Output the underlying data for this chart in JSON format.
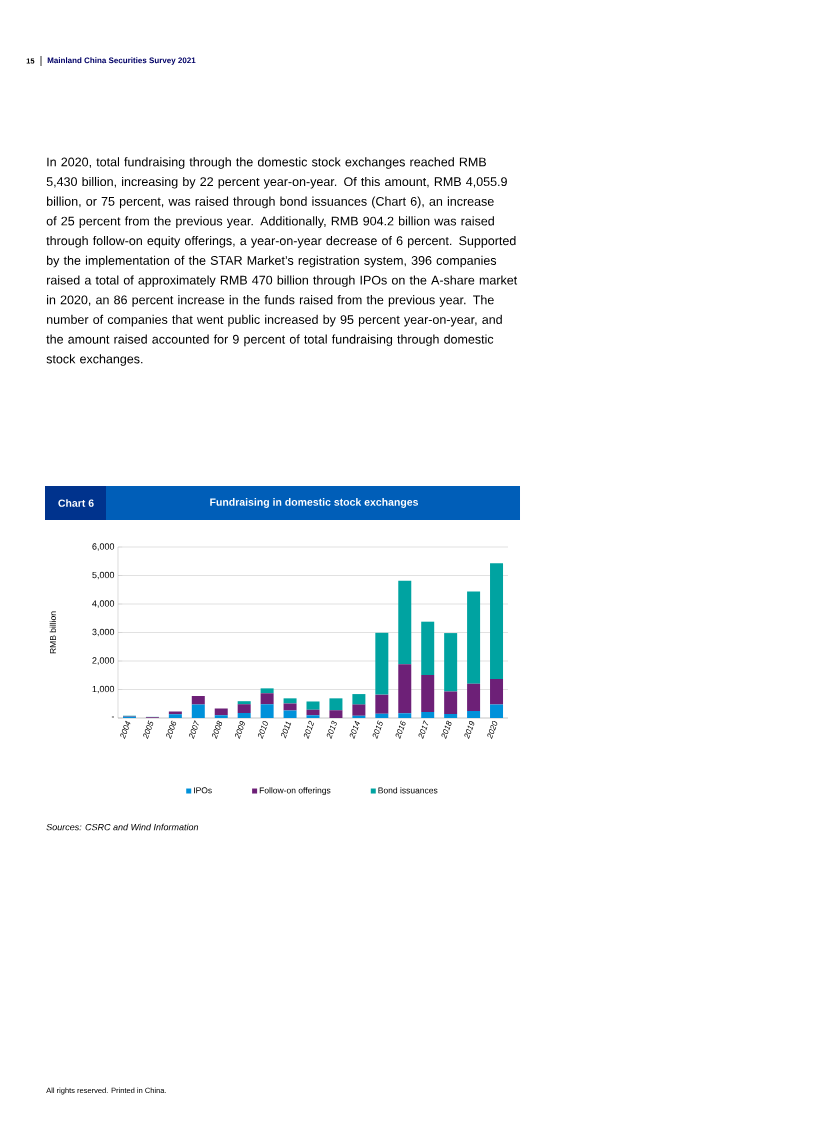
{
  "chart_data": {
    "type": "bar",
    "title": "Fundraising in domestic stock exchanges",
    "ylabel": "RMB billion",
    "annotations": [
      "15",
      "Mainland China Securities Survey 2021",
      "Chart 6",
      "In 2020, total fundraising through the domestic stock exchanges reached RMB 5,430 billion, increasing by 22 percent year-on-year. Of this amount, RMB 4,055.9 billion, or 75 percent, was raised through bond issuances (Chart 6), an increase of 25 percent from the previous year. Additionally, RMB 904.2 billion was raised through follow-on equity offerings, a year-on-year decrease of 6 percent. Supported by the implementation of the STAR Market’s registration system, 396 companies raised a total of approximately RMB 470 billion through IPOs on the A-share market in 2020, an 86 percent increase in the funds raised from the previous year. The number of companies that went public increased by 95 percent year-on-year, and the amount raised accounted for 9 percent of total fundraising through domestic stock exchanges.",
      "Sources: CSRC and Wind Information",
      "All rights reserved. Printed in China."
    ],
    "categories": [
      "2004",
      "2005",
      "2006",
      "2007",
      "2008",
      "2009",
      "2010",
      "2011",
      "2012",
      "2013",
      "2014",
      "2015",
      "2016",
      "2017",
      "2018",
      "2019",
      "2020"
    ],
    "stacked": true,
    "series": [
      {
        "name": "IPOs",
        "color": "#0091da",
        "values": [
          40,
          0,
          130,
          470,
          100,
          180,
          480,
          260,
          100,
          0,
          80,
          150,
          170,
          210,
          140,
          250,
          470
        ]
      },
      {
        "name": "Follow-on offerings",
        "color": "#6d2077",
        "values": [
          20,
          30,
          100,
          300,
          230,
          300,
          390,
          250,
          190,
          270,
          390,
          670,
          1720,
          1300,
          790,
          950,
          900
        ]
      },
      {
        "name": "Bond issuances",
        "color": "#00a3a1",
        "values": [
          20,
          10,
          null,
          null,
          null,
          110,
          170,
          180,
          290,
          420,
          370,
          2170,
          2930,
          1870,
          2050,
          3240,
          4060
        ]
      }
    ],
    "ylim": [
      0,
      6000
    ],
    "yticks": [
      {
        "value": 0,
        "label": "-"
      },
      {
        "value": 1000,
        "label": "1,000"
      },
      {
        "value": 2000,
        "label": "2,000"
      },
      {
        "value": 3000,
        "label": "3,000"
      },
      {
        "value": 4000,
        "label": "4,000"
      },
      {
        "value": 5000,
        "label": "5,000"
      },
      {
        "value": 6000,
        "label": "6,000"
      }
    ],
    "grid": "y",
    "legend": "bottom"
  }
}
